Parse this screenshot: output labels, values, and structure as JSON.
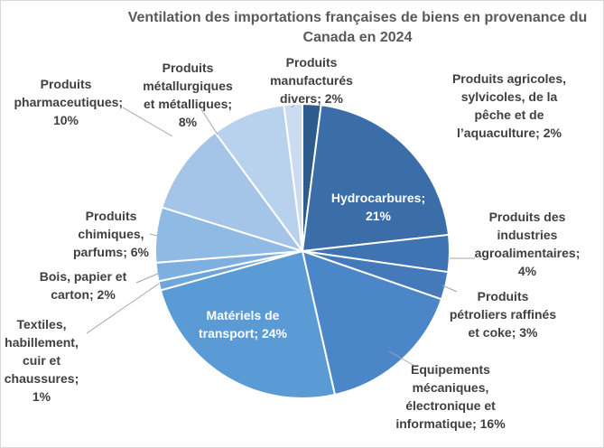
{
  "chart_data": {
    "type": "pie",
    "title": "Ventilation des importations françaises de biens en provenance du Canada en 2024",
    "labels": [
      "Produits agricoles, sylvicoles, de la pêche et de l’aquaculture; 2%",
      "Hydrocarbures; 21%",
      "Produits des industries agroalimentaires; 4%",
      "Produits pétroliers raffinés et coke; 3%",
      "Equipements mécaniques, électronique et informatique; 16%",
      "Matériels de transport; 24%",
      "Textiles, habillement, cuir et chaussures; 1%",
      "Bois, papier et carton; 2%",
      "Produits chimiques, parfums; 6%",
      "Produits pharmaceutiques; 10%",
      "Produits métallurgiques et métalliques; 8%",
      "Produits manufacturés divers; 2%"
    ],
    "values": [
      2,
      21,
      4,
      3,
      16,
      24,
      1,
      2,
      6,
      10,
      8,
      2
    ],
    "colors": [
      "#2d5b8c",
      "#3b6ea8",
      "#3f74b2",
      "#4479ba",
      "#4a86c8",
      "#5b9bd5",
      "#6ea6db",
      "#7db0e0",
      "#8fbae4",
      "#a5c5e8",
      "#b8d1ed",
      "#cbdcf1"
    ]
  }
}
